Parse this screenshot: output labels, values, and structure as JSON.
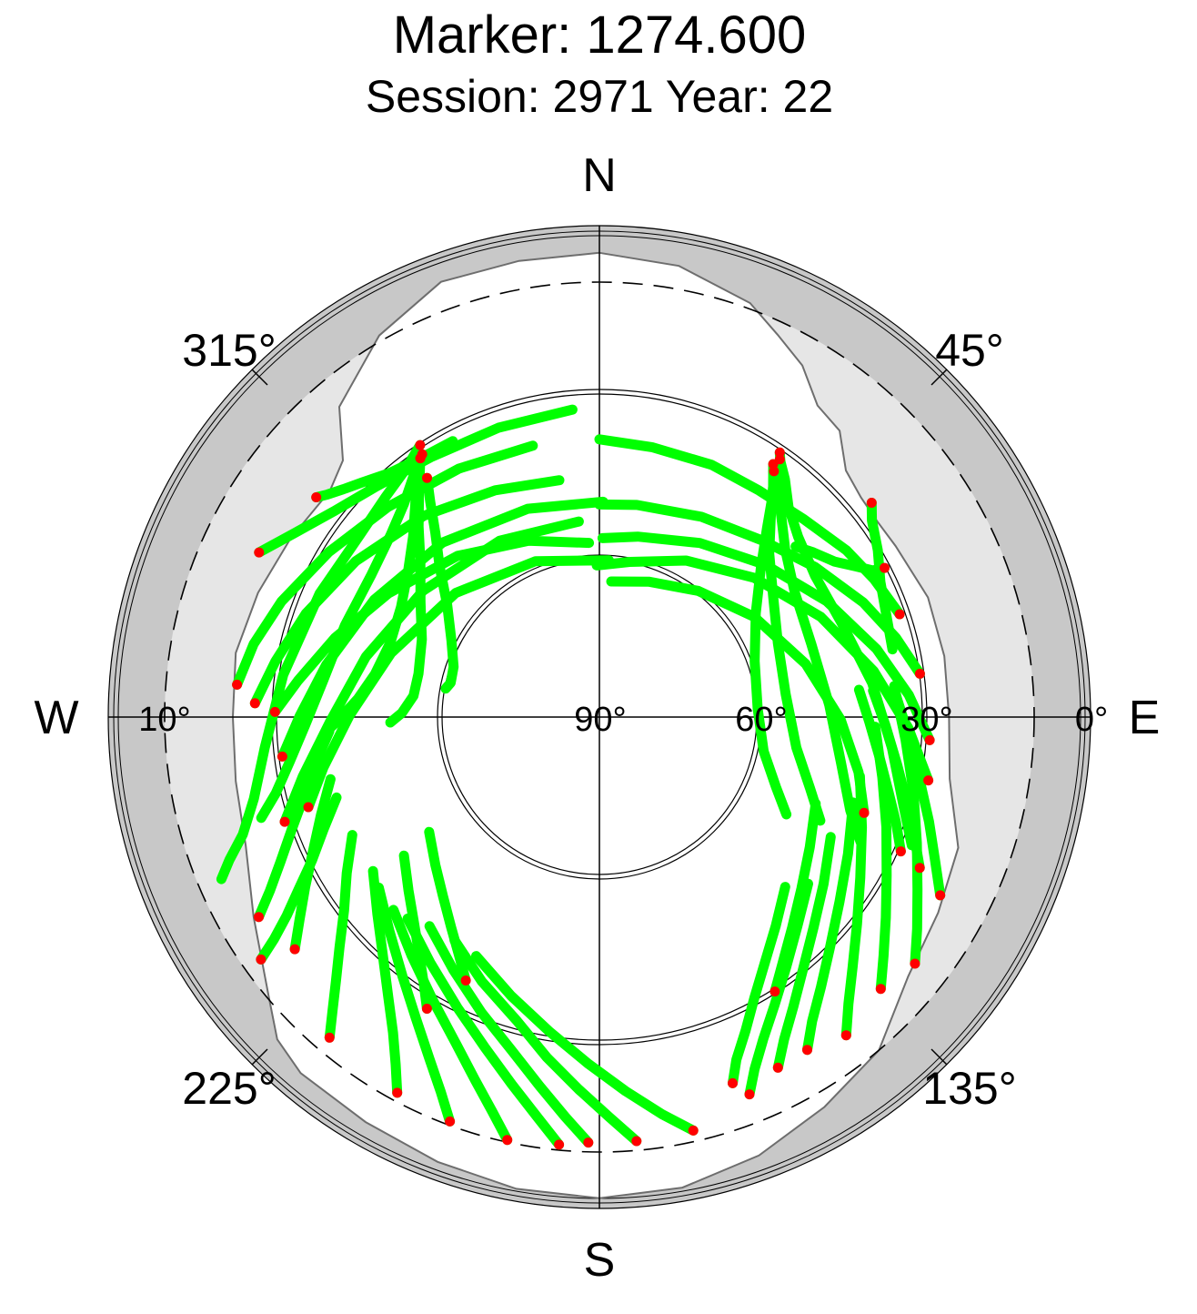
{
  "header": {
    "title": "Marker: 1274.600",
    "subtitle": "Session: 2971 Year: 22"
  },
  "compass": {
    "north": "N",
    "south": "S",
    "east": "E",
    "west": "W"
  },
  "azimuth_labels": {
    "nw": "315°",
    "ne": "45°",
    "sw": "225°",
    "se": "135°"
  },
  "elevation_labels": {
    "west": "10°",
    "zenith": "90°",
    "e60": "60°",
    "e30": "30°",
    "horizon": "0°"
  },
  "colors": {
    "track": "#00ff00",
    "track_end": "#ff0000",
    "horizon_band": "#c8c8c8",
    "mask_region": "#e6e6e6",
    "sky": "#ffffff",
    "mask_outline": "#6e6e6e"
  },
  "chart_data": {
    "type": "scatter",
    "projection": "polar sky plot (azimuth clockwise from north, radius = 90° − elevation)",
    "title": "Marker: 1274.600",
    "subtitle": "Session: 2971 Year: 22",
    "elevation_rings": [
      10,
      30,
      60,
      90
    ],
    "azimuth_ticks": [
      0,
      45,
      90,
      135,
      180,
      225,
      270,
      315
    ],
    "tracks": [
      {
        "az": [
          326.6,
          322.0,
          315.9,
          307.3,
          293.8,
          277.6,
          264.8,
          256.7,
          251.8,
          248.9,
          246.8
        ],
        "el": [
          30.0,
          32.0,
          33.4,
          34.5,
          33.6,
          31.2,
          28.1,
          24.6,
          20.9,
          17.0,
          14.3
        ]
      },
      {
        "az": [
          326.0,
          322.3,
          317.5,
          311.1,
          302.0,
          289.8,
          277.9,
          268.5,
          261.8,
          256.8,
          253.4
        ],
        "el": [
          31.6,
          33.9,
          36.6,
          38.8,
          40.3,
          40.0,
          38.6,
          35.7,
          32.3,
          28.8,
          25.0
        ]
      },
      {
        "az": [
          325.3,
          322.2,
          318.8,
          314.1,
          307.6,
          299.0,
          289.7,
          280.8,
          274.3,
          269.2,
          266.6
        ],
        "el": [
          32.0,
          35.0,
          38.3,
          42.0,
          45.3,
          47.9,
          48.8,
          47.6,
          45.1,
          41.6,
          39.1
        ]
      },
      {
        "az": [
          325.3,
          321.5,
          316.5,
          310.9,
          302.9,
          293.6,
          283.5,
          276.5,
          271.2,
          268.5
        ],
        "el": [
          32.0,
          36.5,
          41.4,
          46.1,
          50.4,
          53.9,
          55.3,
          55.1,
          53.2,
          51.1
        ]
      },
      {
        "az": [
          324.2,
          321.9,
          318.3,
          313.2,
          306.3,
          297.4,
          289.0,
          283.0,
          280.5
        ],
        "el": [
          35.6,
          39.3,
          44.3,
          49.3,
          54.8,
          58.8,
          61.1,
          61.4,
          60.7
        ]
      },
      {
        "az": [
          307.8,
          309.3,
          311.7,
          314.6,
          319.3,
          325.3,
          332.0
        ],
        "el": [
          24.0,
          25.3,
          26.9,
          28.5,
          30.7,
          32.0,
          32.4
        ]
      },
      {
        "az": [
          295.8,
          300.9,
          307.7,
          316.0,
          327.0,
          340.8,
          355.0
        ],
        "el": [
          20.4,
          24.3,
          28.1,
          30.9,
          32.9,
          33.5,
          33.1
        ]
      },
      {
        "az": [
          275.1,
          281.9,
          290.0,
          301.4,
          314.8,
          330.5,
          346.2
        ],
        "el": [
          23.0,
          24.9,
          27.7,
          31.6,
          35.0,
          37.3,
          38.4
        ]
      },
      {
        "az": [
          272.3,
          279.7,
          289.4,
          302.6,
          318.8,
          335.3,
          350.4
        ],
        "el": [
          26.5,
          29.4,
          32.6,
          36.6,
          40.6,
          43.8,
          45.5
        ]
      },
      {
        "az": [
          270.9,
          276.9,
          286.7,
          300.4,
          318.6,
          338.1,
          356.6
        ],
        "el": [
          30.2,
          34.0,
          39.0,
          44.7,
          50.1,
          54.6,
          57.4
        ]
      },
      {
        "az": [
          262.9,
          270.2,
          280.8,
          297.5,
          318.0,
          341.0,
          361.0
        ],
        "el": [
          31.1,
          34.7,
          38.6,
          43.0,
          46.5,
          49.1,
          50.0
        ]
      },
      {
        "az": [
          251.6,
          258.7,
          268.8,
          284.5,
          305.6,
          330.5,
          354.0
        ],
        "el": [
          28.9,
          34.2,
          40.1,
          45.3,
          49.7,
          52.3,
          53.4
        ]
      },
      {
        "az": [
          252.8,
          259.7,
          270.3,
          287.0,
          310.8,
          337.7,
          363.5
        ],
        "el": [
          33.8,
          38.2,
          43.7,
          49.5,
          54.6,
          58.5,
          60.6
        ]
      },
      {
        "az": [
          35.0,
          38.0,
          42.0,
          47.8,
          56.8,
          69.0,
          82.9,
          96.0,
          106.1,
          112.3
        ],
        "el": [
          32.0,
          34.4,
          37.8,
          40.4,
          42.3,
          41.9,
          39.2,
          35.7,
          31.7,
          27.8
        ]
      },
      {
        "az": [
          34.3,
          37.4,
          41.5,
          48.0,
          57.4,
          71.0,
          87.0,
          100.9,
          110.4,
          115.5
        ],
        "el": [
          31.0,
          34.7,
          39.4,
          43.7,
          47.0,
          48.4,
          47.3,
          44.4,
          40.5,
          36.6
        ]
      },
      {
        "az": [
          34.5,
          37.0,
          40.6,
          46.1,
          55.0,
          67.5,
          83.0,
          98.8,
          108.7,
          115.1
        ],
        "el": [
          33.4,
          36.7,
          41.3,
          46.3,
          50.6,
          54.0,
          55.0,
          52.9,
          48.7,
          44.8
        ]
      },
      {
        "az": [
          35.4,
          38.0,
          41.7,
          47.3,
          56.4,
          70.2,
          87.0,
          101.8,
          111.6,
          117.5
        ],
        "el": [
          34.4,
          38.0,
          43.4,
          49.2,
          55.0,
          59.1,
          60.3,
          58.6,
          54.6,
          50.8
        ]
      },
      {
        "az": [
          51.8,
          54.2,
          59.1,
          64.3,
          70.3,
          77.0
        ],
        "el": [
          26.2,
          28.1,
          30.2,
          32.5,
          33.8,
          34.5
        ]
      },
      {
        "az": [
          62.4,
          61.8,
          59.5,
          56.6,
          52.4,
          49.0
        ],
        "el": [
          30.7,
          32.8,
          35.2,
          37.9,
          40.1,
          41.9
        ]
      },
      {
        "az": [
          71.1,
          63.4,
          56.0,
          45.8,
          35.2,
          24.0,
          11.0,
          0.0
        ],
        "el": [
          31.5,
          33.3,
          35.0,
          37.5,
          38.8,
          39.0,
          39.2,
          38.7
        ]
      },
      {
        "az": [
          82.3,
          75.0,
          66.5,
          55.2,
          43.0,
          27.0,
          10.0,
          360.0
        ],
        "el": [
          30.4,
          33.4,
          36.9,
          41.4,
          45.4,
          48.3,
          50.0,
          50.5
        ]
      },
      {
        "az": [
          94.0,
          85.9,
          76.2,
          63.0,
          47.5,
          30.0,
          12.0,
          1.0
        ],
        "el": [
          29.0,
          32.8,
          37.3,
          42.8,
          48.2,
          52.6,
          55.6,
          56.6
        ]
      },
      {
        "az": [
          100.9,
          92.0,
          80.5,
          65.6,
          48.0,
          29.0,
          11.0,
          359.0
        ],
        "el": [
          28.3,
          33.0,
          38.6,
          45.0,
          51.3,
          56.6,
          60.4,
          61.6
        ]
      },
      {
        "az": [
          109.9,
          102.0,
          90.6,
          75.6,
          57.1,
          38.0,
          20.0,
          5.0
        ],
        "el": [
          38.0,
          41.0,
          45.3,
          50.4,
          55.6,
          60.0,
          63.0,
          64.5
        ]
      },
      {
        "az": [
          167.2,
          171.0,
          176.0,
          181.8,
          189.0,
          197.5,
          207.3
        ],
        "el": [
          12.0,
          16.0,
          21.0,
          26.1,
          31.3,
          36.0,
          40.3
        ]
      },
      {
        "az": [
          175.0,
          178.6,
          183.2,
          188.8,
          195.2,
          204.0,
          213.0
        ],
        "el": [
          11.7,
          16.4,
          21.4,
          26.6,
          32.0,
          36.6,
          40.8
        ]
      },
      {
        "az": [
          181.5,
          184.9,
          189.2,
          194.7,
          201.8,
          210.0,
          219.1
        ],
        "el": [
          11.7,
          16.2,
          21.2,
          26.5,
          31.4,
          36.1,
          40.2
        ]
      },
      {
        "az": [
          185.4,
          188.8,
          193.4,
          199.1,
          206.0,
          214.6,
          223.6
        ],
        "el": [
          11.0,
          15.5,
          20.5,
          25.6,
          30.4,
          35.0,
          38.6
        ]
      },
      {
        "az": [
          192.3,
          195.2,
          199.0,
          203.9,
          210.5,
          218.2,
          226.9
        ],
        "el": [
          10.4,
          14.8,
          19.5,
          24.5,
          29.5,
          34.0,
          37.9
        ]
      },
      {
        "az": [
          200.3,
          203.0,
          206.5,
          211.3,
          217.2,
          224.5,
          232.3
        ],
        "el": [
          10.7,
          15.2,
          19.8,
          25.0,
          30.0,
          34.7,
          38.5
        ]
      },
      {
        "az": [
          208.3,
          210.4,
          213.2,
          217.1,
          222.2,
          228.4,
          235.8
        ],
        "el": [
          11.5,
          15.9,
          20.6,
          25.5,
          30.6,
          35.2,
          39.4
        ]
      },
      {
        "az": [
          220.1,
          222.3,
          225.0,
          228.5,
          232.9,
          238.3,
          244.5
        ],
        "el": [
          12.9,
          17.0,
          21.4,
          26.1,
          31.0,
          35.2,
          39.4
        ]
      },
      {
        "az": [
          234.4,
          235.7,
          237.6,
          240.3,
          243.5,
          247.8,
          253.0
        ],
        "el": [
          13.4,
          17.5,
          21.8,
          26.3,
          30.8,
          35.0,
          39.2
        ]
      },
      {
        "az": [
          158.3,
          156.2,
          153.0,
          148.6,
          143.3,
          136.6,
          128.6
        ],
        "el": [
          15.3,
          19.2,
          23.5,
          28.0,
          32.4,
          36.8,
          40.6
        ]
      },
      {
        "az": [
          160.0,
          158.2,
          155.0,
          151.2,
          146.1,
          139.8,
          132.4
        ],
        "el": [
          18.3,
          22.1,
          26.3,
          30.8,
          35.3,
          39.5,
          43.4
        ]
      },
      {
        "az": [
          153.0,
          150.2,
          146.2,
          141.2,
          134.5,
          126.6,
          117.4
        ],
        "el": [
          17.6,
          21.6,
          25.8,
          30.2,
          34.6,
          38.4,
          41.8
        ]
      },
      {
        "az": [
          148.0,
          145.0,
          140.6,
          134.9,
          127.6,
          118.8,
          108.6
        ],
        "el": [
          17.8,
          21.7,
          25.7,
          30.0,
          34.1,
          37.6,
          40.5
        ]
      },
      {
        "az": [
          142.2,
          139.0,
          134.6,
          128.8,
          121.6,
          112.8,
          102.8
        ],
        "el": [
          15.9,
          20.1,
          24.5,
          29.1,
          33.5,
          37.4,
          40.6
        ]
      },
      {
        "az": [
          134.0,
          130.0,
          125.0,
          118.8,
          111.0,
          102.0,
          92.0
        ],
        "el": [
          18.0,
          21.7,
          25.6,
          29.6,
          33.3,
          36.6,
          39.0
        ]
      },
      {
        "az": [
          128.0,
          123.7,
          118.4,
          111.6,
          103.4,
          94.2,
          84.0
        ],
        "el": [
          16.3,
          19.7,
          23.4,
          27.1,
          30.5,
          33.4,
          35.3
        ]
      },
      {
        "az": [
          117.6,
          113.1,
          107.6,
          101.0,
          93.3,
          85.0
        ],
        "el": [
          19.2,
          22.8,
          26.3,
          29.9,
          32.9,
          35.3
        ]
      },
      {
        "az": [
          115.2,
          110.7,
          105.3,
          99.0,
          91.5,
          84.5
        ],
        "el": [
          24.8,
          28.0,
          31.3,
          34.4,
          37.2,
          39.2
        ]
      },
      {
        "az": [
          114.0,
          109.5,
          104.3,
          98.0,
          91.0,
          84.0
        ],
        "el": [
          29.2,
          32.0,
          35.0,
          37.8,
          40.1,
          41.7
        ]
      },
      {
        "az": [
          239.6,
          242.2,
          245.6,
          249.9,
          255.0,
          261.0,
          267.0
        ],
        "el": [
          17.3,
          21.4,
          25.5,
          29.6,
          33.6,
          37.0,
          40.0
        ]
      },
      {
        "az": [
          232.7,
          236.0,
          240.0,
          244.8,
          250.6,
          257.0
        ],
        "el": [
          19.5,
          23.4,
          27.4,
          31.6,
          35.5,
          39.0
        ]
      },
      {
        "az": [
          210.6,
          213.5,
          217.2,
          222.0,
          227.8,
          234.7
        ],
        "el": [
          27.6,
          31.3,
          35.0,
          38.8,
          42.3,
          45.6
        ]
      },
      {
        "az": [
          206.9,
          210.5,
          215.2,
          221.1,
          228.0,
          236.0
        ],
        "el": [
          35.5,
          38.9,
          42.4,
          45.9,
          49.0,
          51.8
        ]
      },
      {
        "az": [
          147.4,
          143.1,
          137.5,
          130.3,
          121.7,
          111.8
        ],
        "el": [
          30.0,
          33.6,
          37.3,
          41.0,
          44.2,
          46.8
        ]
      }
    ],
    "elevation_mask": {
      "az": [
        0,
        10,
        20,
        25,
        30,
        35,
        40,
        45,
        50,
        55,
        60,
        70,
        80,
        90,
        100,
        110,
        120,
        130,
        135,
        140,
        150,
        160,
        170,
        180,
        190,
        200,
        210,
        220,
        225,
        230,
        240,
        250,
        260,
        270,
        280,
        290,
        300,
        310,
        315,
        320,
        330,
        340,
        350,
        360
      ],
      "el": [
        4.8,
        5.9,
        9.0,
        12.4,
        15.3,
        20.0,
        21.2,
        25.8,
        27.1,
        27.4,
        27.0,
        25.6,
        25.5,
        25.6,
        24.5,
        19.7,
        18.0,
        15.8,
        13.3,
        10.0,
        7.3,
        4.4,
        2.4,
        1.8,
        2.2,
        3.2,
        4.2,
        4.7,
        6.3,
        10.5,
        16.5,
        20.7,
        22.0,
        22.5,
        22.0,
        23.1,
        24.3,
        25.2,
        23.2,
        15.5,
        9.0,
        5.0,
        5.0,
        4.8
      ]
    }
  }
}
